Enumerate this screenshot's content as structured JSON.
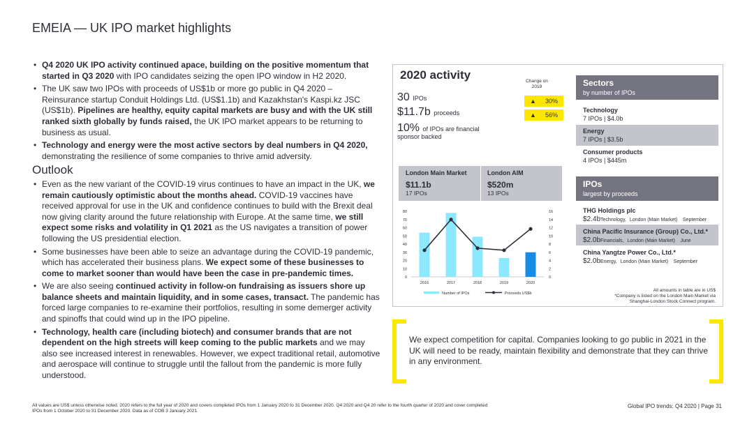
{
  "page_title": "EMEIA — UK IPO market highlights",
  "bullets_top": [
    {
      "bold": "Q4 2020 UK IPO activity continued apace, building on the positive momentum that started in Q3 2020",
      "text": " with IPO candidates seizing the open IPO window in H2 2020."
    },
    {
      "text": "The UK saw two IPOs with proceeds of US$1b or more go public in Q4 2020 – Reinsurance startup Conduit Holdings Ltd. (US$1.1b) and Kazakhstan's Kaspi.kz JSC (US$1b). ",
      "bold": "Pipelines are healthy, equity capital markets are busy and with the UK still ranked sixth globally by funds raised,",
      "text2": " the UK IPO market appears to be returning to business as usual."
    },
    {
      "bold": "Technology and energy were the most active sectors by deal numbers in Q4 2020,",
      "text": " demonstrating the resilience of some companies to thrive amid adversity."
    }
  ],
  "outlook_title": "Outlook",
  "bullets_outlook": [
    {
      "text": "Even as the new variant of the COVID-19 virus continues to have an impact in the UK, ",
      "bold": "we remain cautiously optimistic about the months ahead.",
      "text2": " COVID-19 vaccines have received approval for use in the UK and confidence continues to build with the Brexit deal now giving clarity around the future relationship with Europe. At the same time, ",
      "bold2": "we still expect some risks and volatility in Q1 2021",
      "text3": " as the US navigates a transition of power following the US presidential election."
    },
    {
      "text": "Some businesses have been able to seize an advantage during the COVID-19 pandemic, which has accelerated their business plans. ",
      "bold": "We expect some of these businesses to come to market sooner than would have been the case in pre-pandemic times."
    },
    {
      "text": "We are also seeing ",
      "bold": "continued activity in follow-on fundraising as issuers shore up balance sheets and maintain liquidity, and in some cases, transact.",
      "text2": " The pandemic has forced large companies to re-examine their portfolios, resulting in some demerger activity and spinoffs that could wind up in the IPO pipeline."
    },
    {
      "bold": "Technology, health care (including biotech) and consumer brands that are not dependent on the high streets will keep coming to the public markets",
      "text": " and we may also see increased interest in renewables. However, we expect traditional retail, automotive and aerospace will continue to struggle until the fallout from the pandemic is more fully understood."
    }
  ],
  "activity": {
    "title": "2020 activity",
    "change_header": "Change on 2019",
    "ipos_value": "30",
    "ipos_label": "IPOs",
    "proceeds_value": "$11.7b",
    "proceeds_label": "proceeds",
    "ipos_change": "30%",
    "proceeds_change": "56%",
    "up_arrow": "▲",
    "fin_value": "10%",
    "fin_label": "of IPOs are financial",
    "fin_label2": "sponsor backed"
  },
  "markets": {
    "main": {
      "label": "London Main Market",
      "value": "$11.1b",
      "sub": "17 IPOs"
    },
    "aim": {
      "label": "London AIM",
      "value": "$520m",
      "sub": "13 IPOs"
    }
  },
  "chart_data": {
    "type": "bar",
    "categories": [
      "2016",
      "2017",
      "2018",
      "2019",
      "2020"
    ],
    "series": [
      {
        "name": "Number of IPOs",
        "type": "bar",
        "axis": "left",
        "values": [
          54,
          78,
          49,
          23,
          30
        ]
      },
      {
        "name": "Proceeds US$b",
        "type": "line",
        "axis": "right",
        "values": [
          6.5,
          14,
          7,
          6.5,
          11.7
        ]
      }
    ],
    "y_left": {
      "ticks": [
        "0",
        "10",
        "20",
        "30",
        "40",
        "50",
        "60",
        "70",
        "80"
      ],
      "max": 80
    },
    "y_right": {
      "ticks": [
        "0",
        "2",
        "4",
        "6",
        "8",
        "10",
        "12",
        "14",
        "16"
      ],
      "max": 16
    },
    "legend": "bottom",
    "colors": {
      "bar": "#8ce8ff",
      "bar_highlight": "#188ce5",
      "line": "#2e2e38"
    }
  },
  "sectors": {
    "title": "Sectors",
    "subtitle": "by number of IPOs",
    "items": [
      {
        "name": "Technology",
        "detail": "7 IPOs | $4.0b"
      },
      {
        "name": "Energy",
        "detail": "7 IPOs | $3.5b"
      },
      {
        "name": "Consumer products",
        "detail": "4 IPOs | $445m"
      }
    ]
  },
  "ipos": {
    "title": "IPOs",
    "subtitle": "largest by proceeds",
    "items": [
      {
        "name": "THG Holdings plc",
        "amount": "$2.4b",
        "sector": "Technology,",
        "market": "London (Main Market)",
        "month": "September"
      },
      {
        "name": "China Pacific Insurance (Group) Co., Ltd.*",
        "amount": "$2.0b",
        "sector": "Financials,",
        "market": "London (Main Market)",
        "month": "June"
      },
      {
        "name": "China Yangtze Power Co., Ltd.*",
        "amount": "$2.0b",
        "sector": "Energy,",
        "market": "London (Main Market)",
        "month": "September"
      }
    ]
  },
  "notes": {
    "line1": "All amounts in table are in US$",
    "line2": "*Company is listed on the London Main Market via",
    "line3": "Shanghai-London Stock Connect program."
  },
  "quote": "We expect competition for capital. Companies looking to go public in 2021 in the UK will need to be ready, maintain flexibility and demonstrate that they can thrive in any environment.",
  "footer": {
    "left": "All values are US$ unless otherwise noted. 2020 refers to the full year of 2020 and covers completed IPOs from 1 January 2020 to 31 December 2020. Q4 2020 and Q4 20 refer to the fourth quarter of 2020 and cover completed IPOs from 1 October 2020 to 31 December 2020. Data as of COB 3 January 2021.",
    "right": "Global IPO trends: Q4 2020 | Page 31"
  },
  "brand_colors": {
    "yellow": "#ffe600",
    "dark_grey": "#747480",
    "light_grey": "#c4c4cd"
  }
}
